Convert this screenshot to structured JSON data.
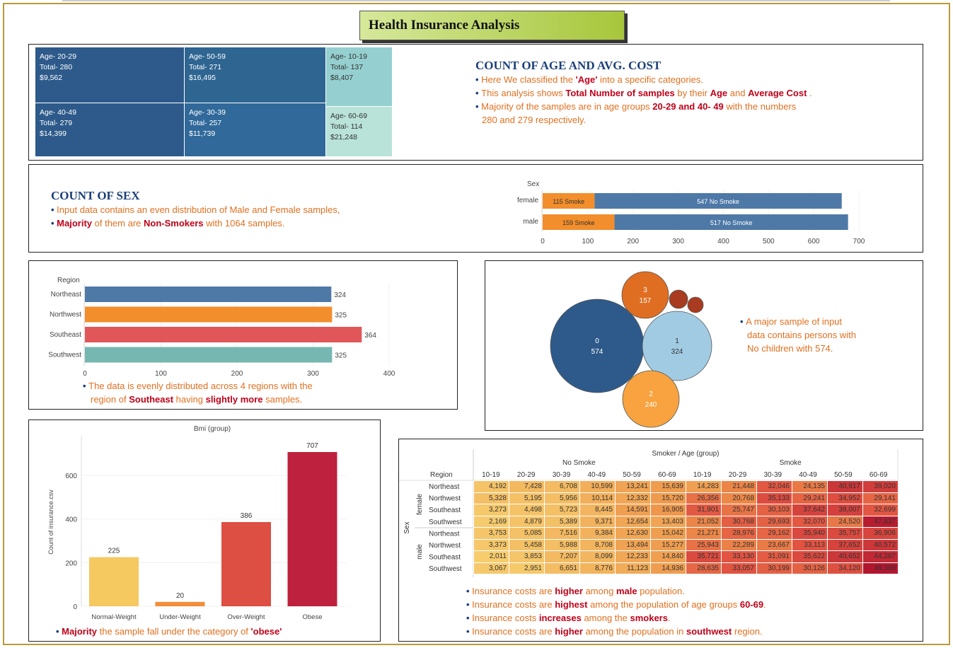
{
  "title": "Health Insurance Analysis",
  "treemap": {
    "cells": [
      {
        "age": "Age- 20-29",
        "total": "Total- 280",
        "cost": "$9,562",
        "color": "#2d5a8a"
      },
      {
        "age": "Age- 50-59",
        "total": "Total- 271",
        "cost": "$16,495",
        "color": "#2e6591"
      },
      {
        "age": "Age- 10-19",
        "total": "Total- 137",
        "cost": "$8,407",
        "color": "#95cfd0"
      },
      {
        "age": "Age- 40-49",
        "total": "Total- 279",
        "cost": "$14,399",
        "color": "#2d5a8a"
      },
      {
        "age": "Age- 30-39",
        "total": "Total- 257",
        "cost": "$11,739",
        "color": "#30699a"
      },
      {
        "age": "Age- 60-69",
        "total": "Total- 114",
        "cost": "$21,248",
        "color": "#b9e3d8"
      }
    ]
  },
  "age_section": {
    "heading": "COUNT OF AGE AND AVG. COST",
    "b1_pre": "Here We classified the ",
    "b1_bold": "'Age'",
    "b1_post": " into a specific categories.",
    "b2_pre": "This analysis shows ",
    "b2_bold1": "Total Number of samples",
    "b2_mid1": " by their ",
    "b2_bold2": "Age",
    "b2_mid2": " and ",
    "b2_bold3": "Average Cost",
    "b2_post": " .",
    "b3_pre": "Majority of the samples are in age groups ",
    "b3_bold": "20-29 and 40- 49",
    "b3_post": " with the numbers",
    "b3_line2": "280 and 279 respectively."
  },
  "sex_section": {
    "heading": "COUNT OF SEX",
    "b1": "Input data contains an even distribution of Male and Female samples,",
    "b2_bold1": "Majority",
    "b2_mid": " of them are ",
    "b2_bold2": "Non-Smokers",
    "b2_post": " with 1064 samples."
  },
  "region_note": {
    "pre": "The data is evenly distributed across 4 regions with the",
    "line2_pre": "region of ",
    "bold1": "Southeast",
    "mid": " having ",
    "bold2": "slightly more",
    "post": " samples."
  },
  "children_note": {
    "line1": "A major sample of input",
    "line2": "data contains persons with",
    "line3": "No children with 574."
  },
  "bmi_note": {
    "bold": "Majority",
    "mid": " the sample fall under the category of ",
    "bold2": "'obese'"
  },
  "heat_notes": [
    {
      "pre": "Insurance costs are ",
      "bold": "higher",
      "mid": " among ",
      "bold2": "male",
      "post": " population."
    },
    {
      "pre": "Insurance costs are ",
      "bold": "highest",
      "mid": " among the population of age groups ",
      "bold2": "60-69",
      "post": "."
    },
    {
      "pre": " Insurance costs ",
      "bold": "increases",
      "mid": " among the ",
      "bold2": "smokers",
      "post": "."
    },
    {
      "pre": "Insurance costs are ",
      "bold": "higher",
      "mid": " among the population in ",
      "bold2": "southwest",
      "post": " region."
    }
  ],
  "chart_data": [
    {
      "type": "bar",
      "orientation": "stacked-horizontal",
      "ylabel": "Sex",
      "categories": [
        "female",
        "male"
      ],
      "series": [
        {
          "name": "Smoke",
          "values": [
            115,
            159
          ],
          "labels": [
            "115 Smoke",
            "159 Smoke"
          ],
          "color": "#f28e2b"
        },
        {
          "name": "No Smoke",
          "values": [
            547,
            517
          ],
          "labels": [
            "547 No Smoke",
            "517 No Smoke"
          ],
          "color": "#4e79a7"
        }
      ],
      "xlim": [
        0,
        700
      ],
      "xticks": [
        0,
        100,
        200,
        300,
        400,
        500,
        600,
        700
      ]
    },
    {
      "type": "bar",
      "orientation": "horizontal",
      "ylabel": "Region",
      "categories": [
        "Northeast",
        "Northwest",
        "Southeast",
        "Southwest"
      ],
      "values": [
        324,
        325,
        364,
        325
      ],
      "colors": [
        "#4e79a7",
        "#f28e2b",
        "#e15759",
        "#76b7b2"
      ],
      "xlim": [
        0,
        400
      ],
      "xticks": [
        0,
        100,
        200,
        300,
        400
      ]
    },
    {
      "type": "bubble",
      "bubbles": [
        {
          "label": "0",
          "value": 574,
          "color": "#2d5a8a"
        },
        {
          "label": "1",
          "value": 324,
          "color": "#a0cbe3"
        },
        {
          "label": "2",
          "value": 240,
          "color": "#f8a33f"
        },
        {
          "label": "3",
          "value": 157,
          "color": "#e06e22"
        },
        {
          "label": "",
          "value": null,
          "color": "#a83b20"
        },
        {
          "label": "",
          "value": null,
          "color": "#a83b20"
        }
      ]
    },
    {
      "type": "bar",
      "title": "Bmi (group)",
      "ylabel": "Count of insurance.csv",
      "categories": [
        "Normal-Weight",
        "Under-Weight",
        "Over-Weight",
        "Obese"
      ],
      "values": [
        225,
        20,
        386,
        707
      ],
      "colors": [
        "#f5c860",
        "#f28e3b",
        "#dc4f42",
        "#bd213d"
      ],
      "ylim": [
        0,
        750
      ],
      "yticks": [
        0,
        200,
        400,
        600
      ]
    },
    {
      "type": "heatmap",
      "title": "Smoker / Age (group)",
      "groups": [
        "No Smoke",
        "Smoke"
      ],
      "columns": [
        "10-19",
        "20-29",
        "30-39",
        "40-49",
        "50-59",
        "60-69",
        "10-19",
        "20-29",
        "30-39",
        "40-49",
        "50-59",
        "60-69"
      ],
      "row_header": "Region",
      "side_label": "Sex",
      "sexes": [
        "female",
        "male"
      ],
      "regions": [
        "Northeast",
        "Northwest",
        "Southeast",
        "Southwest"
      ],
      "rows": [
        [
          4192,
          7428,
          6708,
          10599,
          13241,
          15639,
          14283,
          21448,
          32046,
          24135,
          40917,
          39020
        ],
        [
          5328,
          5195,
          5956,
          10114,
          12332,
          15720,
          26356,
          20768,
          35133,
          29241,
          34952,
          29141
        ],
        [
          3273,
          4498,
          5723,
          8445,
          14591,
          16905,
          31901,
          25747,
          30103,
          37642,
          38007,
          32699
        ],
        [
          2169,
          4879,
          5389,
          9371,
          12654,
          13403,
          21052,
          30768,
          29693,
          32070,
          24520,
          47837
        ],
        [
          3753,
          5085,
          7516,
          9384,
          12630,
          15042,
          21271,
          28976,
          29162,
          35940,
          35757,
          36906
        ],
        [
          3373,
          5458,
          5988,
          8708,
          13494,
          15277,
          25943,
          22289,
          23667,
          33113,
          37652,
          40572
        ],
        [
          2011,
          3853,
          7207,
          8099,
          12233,
          14840,
          35721,
          33130,
          31091,
          35622,
          40652,
          44287
        ],
        [
          3067,
          2951,
          6651,
          8776,
          11123,
          14936,
          28635,
          33057,
          30199,
          30126,
          34120,
          49389
        ]
      ]
    }
  ]
}
